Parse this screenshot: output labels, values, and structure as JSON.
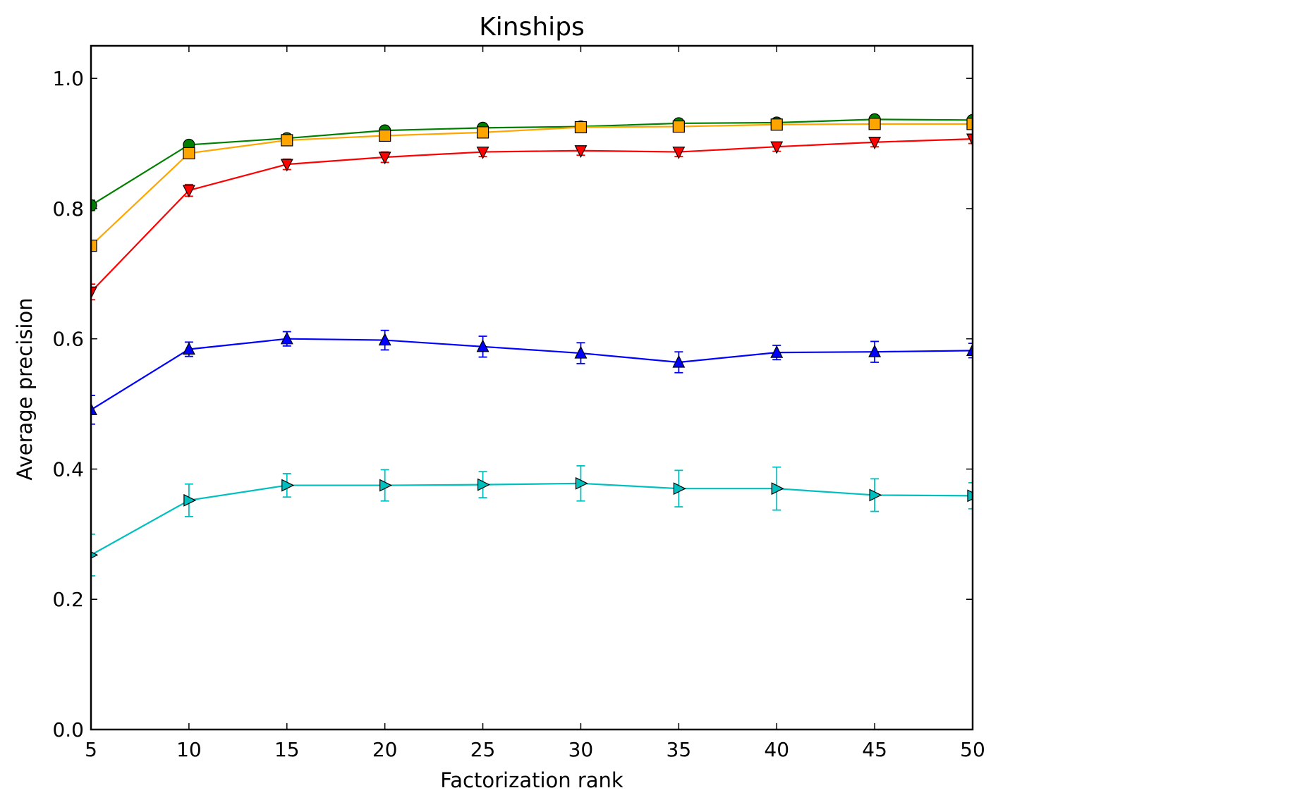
{
  "chart_data": {
    "type": "line",
    "title": "Kinships",
    "xlabel": "Factorization rank",
    "ylabel": "Average precision",
    "x": [
      5,
      10,
      15,
      20,
      25,
      30,
      35,
      40,
      45,
      50
    ],
    "xlim": [
      5,
      50
    ],
    "ylim": [
      0.0,
      1.05
    ],
    "x_ticks": [
      "5",
      "10",
      "15",
      "20",
      "25",
      "30",
      "35",
      "40",
      "45",
      "50"
    ],
    "y_ticks": [
      "0.0",
      "0.2",
      "0.4",
      "0.6",
      "0.8",
      "1.0"
    ],
    "grid": false,
    "legend": "none",
    "series": [
      {
        "color": "#008000",
        "marker": "circle",
        "values": [
          0.805,
          0.898,
          0.908,
          0.92,
          0.924,
          0.926,
          0.931,
          0.932,
          0.937,
          0.936
        ],
        "errors": [
          0.008,
          0.006,
          0.005,
          0.005,
          0.005,
          0.005,
          0.005,
          0.005,
          0.005,
          0.005
        ]
      },
      {
        "color": "#FFA500",
        "marker": "square",
        "values": [
          0.743,
          0.885,
          0.905,
          0.912,
          0.917,
          0.925,
          0.926,
          0.929,
          0.93,
          0.93
        ],
        "errors": [
          0.008,
          0.006,
          0.005,
          0.005,
          0.005,
          0.005,
          0.005,
          0.005,
          0.005,
          0.005
        ]
      },
      {
        "color": "#FF0000",
        "marker": "triangle-down",
        "values": [
          0.672,
          0.828,
          0.868,
          0.879,
          0.887,
          0.889,
          0.887,
          0.895,
          0.902,
          0.907
        ],
        "errors": [
          0.012,
          0.009,
          0.008,
          0.008,
          0.007,
          0.007,
          0.007,
          0.007,
          0.007,
          0.007
        ]
      },
      {
        "color": "#0000FF",
        "marker": "triangle-up",
        "values": [
          0.491,
          0.584,
          0.6,
          0.598,
          0.588,
          0.578,
          0.564,
          0.579,
          0.58,
          0.582
        ],
        "errors": [
          0.022,
          0.011,
          0.011,
          0.015,
          0.016,
          0.016,
          0.016,
          0.011,
          0.016,
          0.011
        ]
      },
      {
        "color": "#00BFBF",
        "marker": "triangle-right",
        "values": [
          0.268,
          0.352,
          0.375,
          0.375,
          0.376,
          0.378,
          0.37,
          0.37,
          0.36,
          0.359
        ],
        "errors": [
          0.032,
          0.025,
          0.018,
          0.024,
          0.02,
          0.027,
          0.028,
          0.033,
          0.025,
          0.02
        ]
      }
    ]
  }
}
